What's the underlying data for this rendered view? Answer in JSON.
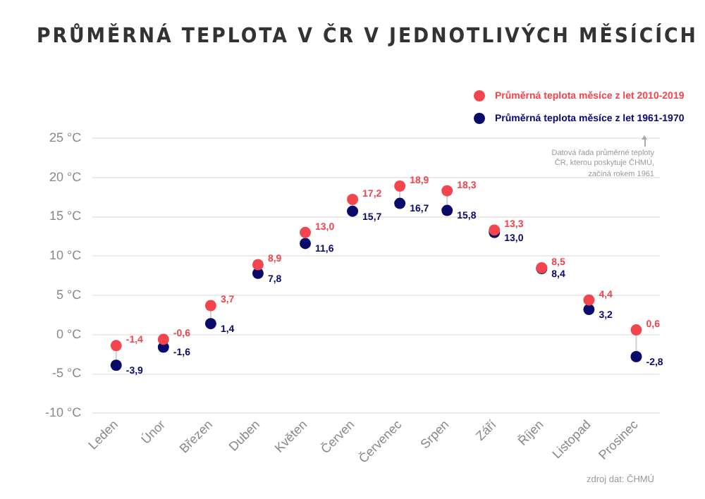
{
  "chart_data": {
    "type": "scatter",
    "title": "PRŮMĚRNÁ TEPLOTA V ČR V JEDNOTLIVÝCH MĚSÍCÍCH",
    "categories": [
      "Leden",
      "Únor",
      "Březen",
      "Duben",
      "Květen",
      "Červen",
      "Červenec",
      "Srpen",
      "Září",
      "Říjen",
      "Listopad",
      "Prosinec"
    ],
    "series": [
      {
        "name": "Průměrná teplota měsíce z let 2010-2019",
        "color": "#f2454e",
        "values": [
          -1.4,
          -0.6,
          3.7,
          8.9,
          13.0,
          17.2,
          18.9,
          18.3,
          13.3,
          8.5,
          4.4,
          0.6
        ],
        "value_labels": [
          "-1,4",
          "-0,6",
          "3,7",
          "8,9",
          "13,0",
          "17,2",
          "18,9",
          "18,3",
          "13,3",
          "8,5",
          "4,4",
          "0,6"
        ]
      },
      {
        "name": "Průměrná teplota měsíce z let 1961-1970",
        "color": "#0a0a6b",
        "values": [
          -3.9,
          -1.6,
          1.4,
          7.8,
          11.6,
          15.7,
          16.7,
          15.8,
          13.0,
          8.4,
          3.2,
          -2.8
        ],
        "value_labels": [
          "-3,9",
          "-1,6",
          "1,4",
          "7,8",
          "11,6",
          "15,7",
          "16,7",
          "15,8",
          "13,0",
          "8,4",
          "3,2",
          "-2,8"
        ]
      }
    ],
    "ylim": [
      -10,
      25
    ],
    "yticks": [
      {
        "value": -10,
        "label": "-10 °C"
      },
      {
        "value": -5,
        "label": "-5 °C"
      },
      {
        "value": 0,
        "label": "0 °C"
      },
      {
        "value": 5,
        "label": "5 °C"
      },
      {
        "value": 10,
        "label": "10 °C"
      },
      {
        "value": 15,
        "label": "15 °C"
      },
      {
        "value": 20,
        "label": "20 °C"
      },
      {
        "value": 25,
        "label": "25 °C"
      }
    ],
    "grid": "y",
    "legend": "top right",
    "marker": "circle",
    "annotations": [
      "Datová řada průměrné teploty ČR, kterou poskytuje ČHMÚ, začíná rokem 1961",
      "zdroj dat: ČHMÚ"
    ]
  }
}
